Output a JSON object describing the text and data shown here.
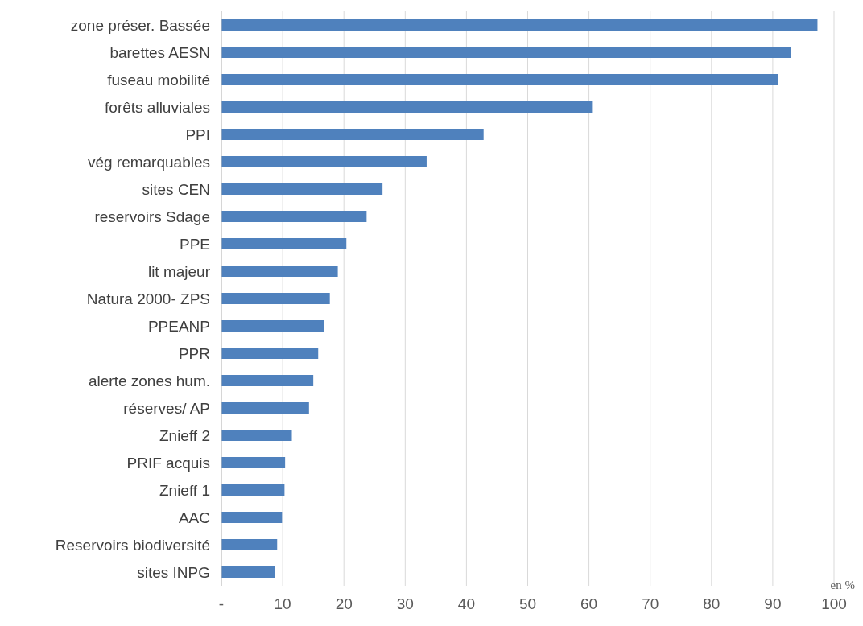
{
  "chart_data": {
    "type": "bar",
    "orientation": "horizontal",
    "xlabel": "en %",
    "categories": [
      "zone préser. Bassée",
      "barettes AESN",
      "fuseau mobilité",
      "forêts alluviales",
      "PPI",
      "vég remarquables",
      "sites CEN",
      "reservoirs Sdage",
      "PPE",
      "lit majeur",
      "Natura 2000- ZPS",
      "PPEANP",
      "PPR",
      "alerte zones hum. ",
      "réserves/ AP",
      "Znieff 2",
      "PRIF acquis",
      "Znieff 1",
      "AAC",
      "Reservoirs biodiversité",
      "sites INPG"
    ],
    "values": [
      97.3,
      93.0,
      90.9,
      60.5,
      42.8,
      33.5,
      26.3,
      23.7,
      20.4,
      19.0,
      17.7,
      16.8,
      15.8,
      15.0,
      14.3,
      11.5,
      10.4,
      10.3,
      9.9,
      9.1,
      8.7
    ],
    "color": "#4f81bd",
    "xlim": [
      0,
      100
    ],
    "xticks": [
      {
        "value": 0,
        "label": "-"
      },
      10,
      20,
      30,
      40,
      50,
      60,
      70,
      80,
      90,
      100
    ],
    "grid": "x"
  }
}
